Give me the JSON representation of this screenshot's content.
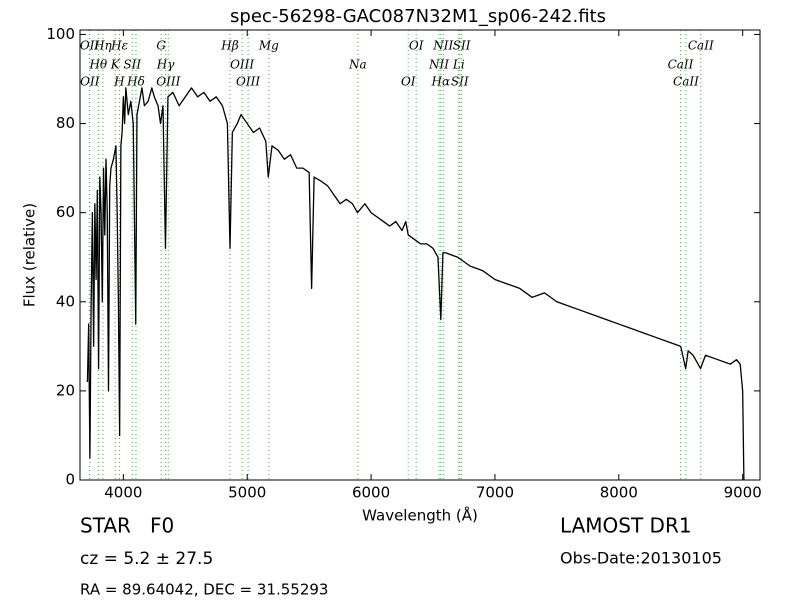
{
  "chart_data": {
    "type": "line",
    "title": "spec-56298-GAC087N32M1_sp06-242.fits",
    "x_label": "Wavelength (Å)",
    "y_label": "Flux (relative)",
    "x": [
      3710,
      3720,
      3730,
      3740,
      3750,
      3760,
      3770,
      3780,
      3790,
      3800,
      3810,
      3820,
      3830,
      3840,
      3850,
      3860,
      3870,
      3880,
      3890,
      3900,
      3920,
      3940,
      3950,
      3960,
      3970,
      3980,
      3990,
      4000,
      4010,
      4020,
      4040,
      4060,
      4080,
      4100,
      4110,
      4130,
      4150,
      4170,
      4200,
      4230,
      4250,
      4280,
      4300,
      4320,
      4340,
      4360,
      4400,
      4450,
      4500,
      4550,
      4600,
      4650,
      4700,
      4750,
      4800,
      4840,
      4861,
      4880,
      4920,
      4950,
      5000,
      5050,
      5100,
      5150,
      5170,
      5200,
      5250,
      5300,
      5350,
      5400,
      5450,
      5500,
      5520,
      5540,
      5600,
      5650,
      5700,
      5750,
      5800,
      5850,
      5890,
      5950,
      6000,
      6050,
      6100,
      6150,
      6200,
      6250,
      6280,
      6300,
      6350,
      6400,
      6450,
      6500,
      6540,
      6563,
      6580,
      6600,
      6700,
      6800,
      6900,
      7000,
      7100,
      7200,
      7300,
      7400,
      7500,
      7600,
      7700,
      7800,
      7900,
      8000,
      8100,
      8200,
      8300,
      8400,
      8500,
      8540,
      8560,
      8600,
      8660,
      8700,
      8800,
      8900,
      8950,
      8980,
      9000,
      9010
    ],
    "values": [
      22,
      35,
      5,
      40,
      60,
      30,
      62,
      45,
      65,
      25,
      68,
      60,
      40,
      70,
      55,
      72,
      60,
      20,
      66,
      70,
      72,
      75,
      60,
      40,
      10,
      75,
      78,
      86,
      80,
      88,
      82,
      85,
      80,
      35,
      82,
      85,
      88,
      84,
      85,
      88,
      86,
      84,
      80,
      84,
      52,
      86,
      87,
      84,
      86,
      88,
      86,
      87,
      85,
      86,
      84,
      80,
      52,
      78,
      80,
      82,
      80,
      78,
      79,
      76,
      68,
      75,
      74,
      72,
      73,
      70,
      70,
      69,
      43,
      68,
      67,
      66,
      64,
      62,
      63,
      62,
      60,
      62,
      60,
      59,
      58,
      57,
      58,
      56,
      58,
      55,
      54,
      53,
      53,
      52,
      50,
      36,
      51,
      51,
      50,
      48,
      47,
      45,
      44,
      43,
      41,
      42,
      40,
      39,
      38,
      37,
      36,
      35,
      34,
      33,
      32,
      31,
      30,
      25,
      29,
      28,
      25,
      28,
      27,
      26,
      27,
      26,
      20,
      0
    ],
    "color": "#000000",
    "xlim": [
      3650,
      9140
    ],
    "ylim": [
      0,
      101
    ],
    "xticks": [
      4000,
      5000,
      6000,
      7000,
      8000,
      9000
    ],
    "yticks": [
      0,
      20,
      40,
      60,
      80,
      100
    ],
    "grid": false,
    "line_color": "#3cb043",
    "annotations": [
      {
        "label": "OII",
        "x": 3727
      },
      {
        "label": "Hθ",
        "x": 3798
      },
      {
        "label": "OII",
        "x": 3729
      },
      {
        "label": "Hη",
        "x": 3835
      },
      {
        "label": "K",
        "x": 3934
      },
      {
        "label": "H",
        "x": 3968
      },
      {
        "label": "Hε",
        "x": 3970
      },
      {
        "label": "SII",
        "x": 4072
      },
      {
        "label": "Hδ",
        "x": 4102
      },
      {
        "label": "G",
        "x": 4305
      },
      {
        "label": "Hγ",
        "x": 4341
      },
      {
        "label": "OIII",
        "x": 4363
      },
      {
        "label": "Hβ",
        "x": 4861
      },
      {
        "label": "OIII",
        "x": 4959
      },
      {
        "label": "OIII",
        "x": 5007
      },
      {
        "label": "Mg",
        "x": 5175
      },
      {
        "label": "Na",
        "x": 5893
      },
      {
        "label": "OI",
        "x": 6300
      },
      {
        "label": "OI",
        "x": 6364
      },
      {
        "label": "NII",
        "x": 6548
      },
      {
        "label": "Hα",
        "x": 6563
      },
      {
        "label": "NII",
        "x": 6583
      },
      {
        "label": "Li",
        "x": 6708
      },
      {
        "label": "SII",
        "x": 6716
      },
      {
        "label": "SII",
        "x": 6731
      },
      {
        "label": "CaII",
        "x": 8498
      },
      {
        "label": "CaII",
        "x": 8542
      },
      {
        "label": "CaII",
        "x": 8662
      }
    ],
    "info": [
      "STAR   F0",
      "cz = 5.2 ± 27.5",
      "RA = 89.64042, DEC = 31.55293",
      "LAMOST DR1",
      "Obs-Date:20130105"
    ]
  }
}
